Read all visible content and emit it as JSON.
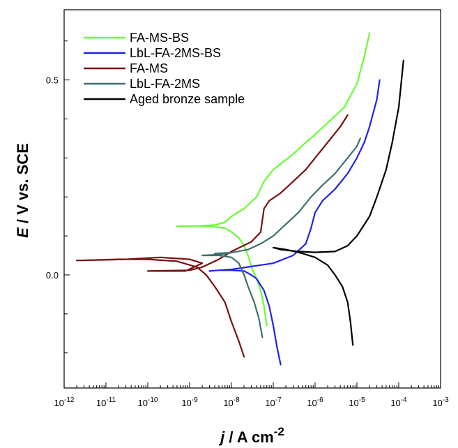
{
  "chart_data": {
    "type": "line",
    "xlabel": "j / A cm-2",
    "ylabel": "E / V vs. SCE",
    "x_scale": "log",
    "xlim": [
      1e-12,
      0.001
    ],
    "ylim": [
      -0.29,
      0.68
    ],
    "x_tick_labels": [
      {
        "base": "10",
        "exp": "-12"
      },
      {
        "base": "10",
        "exp": "-11"
      },
      {
        "base": "10",
        "exp": "-10"
      },
      {
        "base": "10",
        "exp": "-9"
      },
      {
        "base": "10",
        "exp": "-8"
      },
      {
        "base": "10",
        "exp": "-7"
      },
      {
        "base": "10",
        "exp": "-6"
      },
      {
        "base": "10",
        "exp": "-5"
      },
      {
        "base": "10",
        "exp": "-4"
      },
      {
        "base": "10",
        "exp": "-3"
      }
    ],
    "y_tick_labels": [
      "0.0",
      "0.5"
    ],
    "grid": false,
    "legend_position": "top-left",
    "series": [
      {
        "name": "FA-MS-BS",
        "color": "#66ff33",
        "points": [
          [
            7e-08,
            -0.13
          ],
          [
            6e-08,
            -0.08
          ],
          [
            5e-08,
            -0.04
          ],
          [
            4e-08,
            -0.01
          ],
          [
            3e-08,
            0.02
          ],
          [
            2.5e-08,
            0.05
          ],
          [
            2e-08,
            0.075
          ],
          [
            1.5e-08,
            0.095
          ],
          [
            1e-08,
            0.11
          ],
          [
            7e-09,
            0.12
          ],
          [
            3e-09,
            0.125
          ],
          [
            1.5e-09,
            0.125
          ],
          [
            5e-10,
            0.125
          ],
          [
            1.5e-09,
            0.125
          ],
          [
            4e-09,
            0.128
          ],
          [
            7e-09,
            0.135
          ],
          [
            1e-08,
            0.15
          ],
          [
            2e-08,
            0.17
          ],
          [
            4e-08,
            0.2
          ],
          [
            6e-08,
            0.24
          ],
          [
            1e-07,
            0.27
          ],
          [
            3e-07,
            0.31
          ],
          [
            6e-07,
            0.34
          ],
          [
            1e-06,
            0.36
          ],
          [
            2e-06,
            0.39
          ],
          [
            5e-06,
            0.43
          ],
          [
            1e-05,
            0.49
          ],
          [
            1.5e-05,
            0.56
          ],
          [
            2e-05,
            0.62
          ]
        ]
      },
      {
        "name": "LbL-FA-2MS-BS",
        "color": "#2222ee",
        "points": [
          [
            1.5e-07,
            -0.23
          ],
          [
            1.2e-07,
            -0.18
          ],
          [
            1e-07,
            -0.13
          ],
          [
            8e-08,
            -0.08
          ],
          [
            6e-08,
            -0.04
          ],
          [
            4e-08,
            -0.01
          ],
          [
            3e-08,
            0.0
          ],
          [
            2e-08,
            0.01
          ],
          [
            1e-08,
            0.012
          ],
          [
            5e-09,
            0.012
          ],
          [
            3e-09,
            0.01
          ],
          [
            5e-09,
            0.012
          ],
          [
            1e-08,
            0.014
          ],
          [
            1e-07,
            0.03
          ],
          [
            3e-07,
            0.05
          ],
          [
            6e-07,
            0.08
          ],
          [
            8e-07,
            0.12
          ],
          [
            1e-06,
            0.16
          ],
          [
            1.5e-06,
            0.19
          ],
          [
            3e-06,
            0.22
          ],
          [
            6e-06,
            0.26
          ],
          [
            1e-05,
            0.3
          ],
          [
            1.5e-05,
            0.34
          ],
          [
            2e-05,
            0.38
          ],
          [
            3e-05,
            0.45
          ],
          [
            3.5e-05,
            0.5
          ]
        ]
      },
      {
        "name": "FA-MS",
        "color": "#7a1010",
        "points": [
          [
            2e-08,
            -0.21
          ],
          [
            1.5e-08,
            -0.17
          ],
          [
            1e-08,
            -0.12
          ],
          [
            7e-09,
            -0.07
          ],
          [
            4e-09,
            -0.03
          ],
          [
            2.5e-09,
            0.0
          ],
          [
            1.5e-09,
            0.02
          ],
          [
            5e-10,
            0.035
          ],
          [
            1e-10,
            0.04
          ],
          [
            2e-11,
            0.04
          ],
          [
            2e-12,
            0.037
          ],
          [
            3e-11,
            0.04
          ],
          [
            2e-10,
            0.045
          ],
          [
            1e-09,
            0.04
          ],
          [
            2e-09,
            0.03
          ],
          [
            8e-10,
            0.01
          ],
          [
            1e-10,
            0.01
          ],
          [
            1e-09,
            0.012
          ],
          [
            2e-09,
            0.02
          ],
          [
            5e-09,
            0.04
          ],
          [
            1e-08,
            0.06
          ],
          [
            3e-08,
            0.085
          ],
          [
            5e-08,
            0.11
          ],
          [
            6e-08,
            0.17
          ],
          [
            8e-08,
            0.19
          ],
          [
            1.5e-07,
            0.21
          ],
          [
            3e-07,
            0.24
          ],
          [
            6e-07,
            0.27
          ],
          [
            1e-06,
            0.3
          ],
          [
            2e-06,
            0.34
          ],
          [
            4e-06,
            0.38
          ],
          [
            6e-06,
            0.41
          ]
        ]
      },
      {
        "name": "LbL-FA-2MS",
        "color": "#3d7070",
        "points": [
          [
            5.5e-08,
            -0.16
          ],
          [
            4.5e-08,
            -0.11
          ],
          [
            3.5e-08,
            -0.07
          ],
          [
            2.5e-08,
            -0.03
          ],
          [
            2e-08,
            0.0
          ],
          [
            1.5e-08,
            0.03
          ],
          [
            1e-08,
            0.045
          ],
          [
            5e-09,
            0.05
          ],
          [
            2e-09,
            0.05
          ],
          [
            5e-09,
            0.052
          ],
          [
            1e-08,
            0.057
          ],
          [
            8e-09,
            0.055
          ],
          [
            4e-09,
            0.055
          ],
          [
            1e-08,
            0.057
          ],
          [
            2.5e-08,
            0.065
          ],
          [
            5e-08,
            0.08
          ],
          [
            1e-07,
            0.1
          ],
          [
            2e-07,
            0.13
          ],
          [
            4e-07,
            0.16
          ],
          [
            8e-07,
            0.2
          ],
          [
            1.5e-06,
            0.23
          ],
          [
            3e-06,
            0.26
          ],
          [
            6e-06,
            0.3
          ],
          [
            1e-05,
            0.33
          ],
          [
            1.2e-05,
            0.35
          ]
        ]
      },
      {
        "name": "Aged bronze sample",
        "color": "#000000",
        "points": [
          [
            8e-06,
            -0.18
          ],
          [
            7e-06,
            -0.12
          ],
          [
            6e-06,
            -0.07
          ],
          [
            4.5e-06,
            -0.03
          ],
          [
            3e-06,
            0.0
          ],
          [
            2e-06,
            0.025
          ],
          [
            1e-06,
            0.045
          ],
          [
            5e-07,
            0.055
          ],
          [
            2e-07,
            0.065
          ],
          [
            1e-07,
            0.07
          ],
          [
            1.5e-07,
            0.065
          ],
          [
            4e-07,
            0.06
          ],
          [
            1e-06,
            0.058
          ],
          [
            3e-06,
            0.06
          ],
          [
            6e-06,
            0.075
          ],
          [
            1e-05,
            0.1
          ],
          [
            2e-05,
            0.15
          ],
          [
            3e-05,
            0.2
          ],
          [
            5e-05,
            0.27
          ],
          [
            7e-05,
            0.34
          ],
          [
            0.0001,
            0.43
          ],
          [
            0.00013,
            0.55
          ]
        ]
      }
    ]
  }
}
